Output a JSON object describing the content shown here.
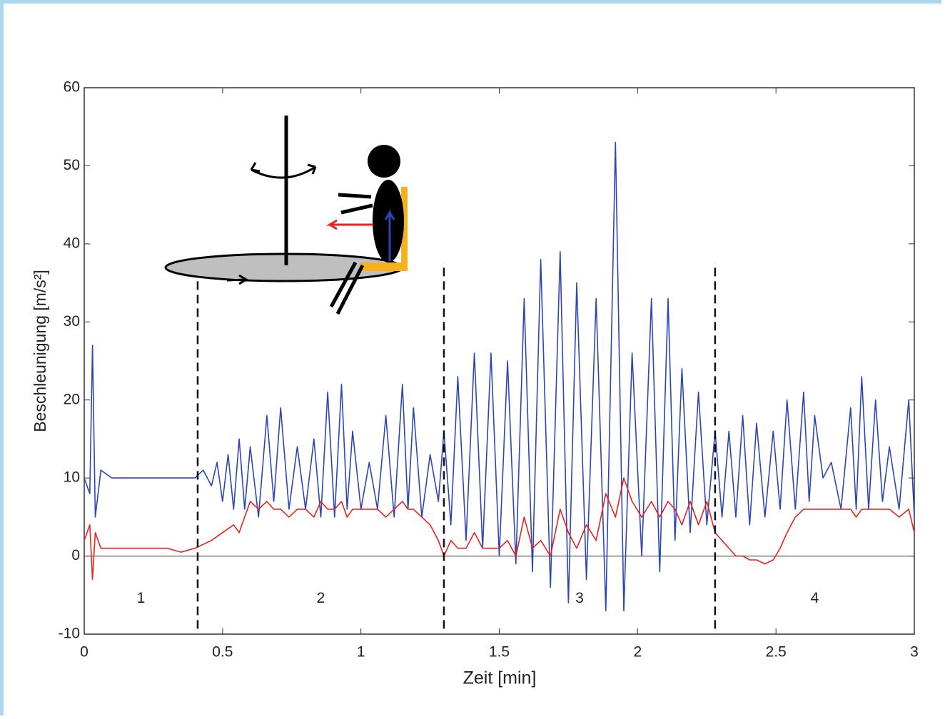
{
  "chart_data": {
    "type": "line",
    "xlabel": "Zeit [min]",
    "ylabel": "Beschleunigung [m/s²]",
    "x": [
      0,
      0.02,
      0.03,
      0.04,
      0.06,
      0.1,
      0.15,
      0.2,
      0.25,
      0.3,
      0.35,
      0.4,
      0.43,
      0.46,
      0.48,
      0.5,
      0.52,
      0.54,
      0.56,
      0.58,
      0.6,
      0.63,
      0.66,
      0.685,
      0.71,
      0.74,
      0.77,
      0.8,
      0.83,
      0.855,
      0.88,
      0.905,
      0.93,
      0.95,
      0.97,
      1.0,
      1.03,
      1.06,
      1.09,
      1.12,
      1.15,
      1.17,
      1.19,
      1.22,
      1.25,
      1.28,
      1.3,
      1.325,
      1.35,
      1.38,
      1.41,
      1.44,
      1.47,
      1.5,
      1.53,
      1.56,
      1.59,
      1.62,
      1.65,
      1.685,
      1.72,
      1.75,
      1.78,
      1.815,
      1.85,
      1.885,
      1.92,
      1.95,
      1.98,
      2.015,
      2.05,
      2.08,
      2.11,
      2.135,
      2.16,
      2.19,
      2.22,
      2.25,
      2.28,
      2.305,
      2.33,
      2.355,
      2.38,
      2.405,
      2.43,
      2.46,
      2.49,
      2.515,
      2.54,
      2.57,
      2.6,
      2.62,
      2.64,
      2.67,
      2.7,
      2.735,
      2.77,
      2.79,
      2.81,
      2.835,
      2.86,
      2.885,
      2.91,
      2.945,
      2.98,
      3.0
    ],
    "series": [
      {
        "color": "#2b47b5",
        "values": [
          10,
          8,
          27,
          5,
          11,
          10,
          10,
          10,
          10,
          10,
          10,
          10,
          11,
          9,
          12,
          7,
          13,
          6,
          15,
          6,
          14,
          5,
          18,
          7,
          19,
          6,
          14,
          6,
          15,
          5,
          21,
          5,
          22,
          6,
          16,
          6,
          12,
          6,
          18,
          5,
          22,
          6,
          19,
          5,
          13,
          7,
          16,
          4,
          23,
          2,
          26,
          1,
          26,
          0,
          25,
          -1,
          33,
          -2,
          38,
          -4,
          39,
          -6,
          35,
          -3,
          33,
          -7,
          53,
          -7,
          26,
          0,
          33,
          -2,
          33,
          2,
          24,
          3,
          21,
          4,
          16,
          5,
          16,
          5,
          18,
          4,
          17,
          5,
          16,
          6,
          20,
          6,
          21,
          7,
          18,
          10,
          12,
          6,
          19,
          6,
          23,
          6,
          20,
          7,
          14,
          6,
          20,
          5
        ]
      },
      {
        "color": "#e8231f",
        "values": [
          2,
          4,
          -3,
          3,
          1,
          1,
          1,
          1,
          1,
          1,
          0.5,
          1,
          1.5,
          2,
          2.5,
          3,
          3.5,
          4,
          3,
          5,
          7,
          6,
          7,
          6,
          6,
          5,
          6,
          6,
          5,
          7,
          6,
          6,
          7,
          5,
          6,
          6,
          6,
          6,
          5,
          6,
          7,
          6,
          6,
          5,
          4,
          2,
          0,
          2,
          1,
          1,
          3,
          1,
          1,
          1,
          2,
          0,
          5,
          1,
          2,
          0,
          6,
          3,
          1,
          4,
          2,
          8,
          5,
          10,
          7,
          5,
          7,
          5,
          7,
          6,
          4,
          7,
          4,
          7,
          3,
          2,
          1,
          0,
          0,
          -0.5,
          -0.5,
          -1,
          -0.5,
          1,
          3,
          5,
          6,
          6,
          6,
          6,
          6,
          6,
          6,
          5,
          6,
          6,
          6,
          6,
          6,
          5,
          6,
          3
        ]
      }
    ],
    "dividers": [
      0.41,
      1.3,
      2.28
    ],
    "phase_labels": [
      "1",
      "2",
      "3",
      "4"
    ],
    "xlim": [
      0,
      3
    ],
    "xticks": [
      0,
      0.5,
      1,
      1.5,
      2,
      2.5,
      3
    ],
    "ylim": [
      -10,
      60
    ],
    "yticks": [
      -10,
      0,
      10,
      20,
      30,
      40,
      50,
      60
    ]
  }
}
